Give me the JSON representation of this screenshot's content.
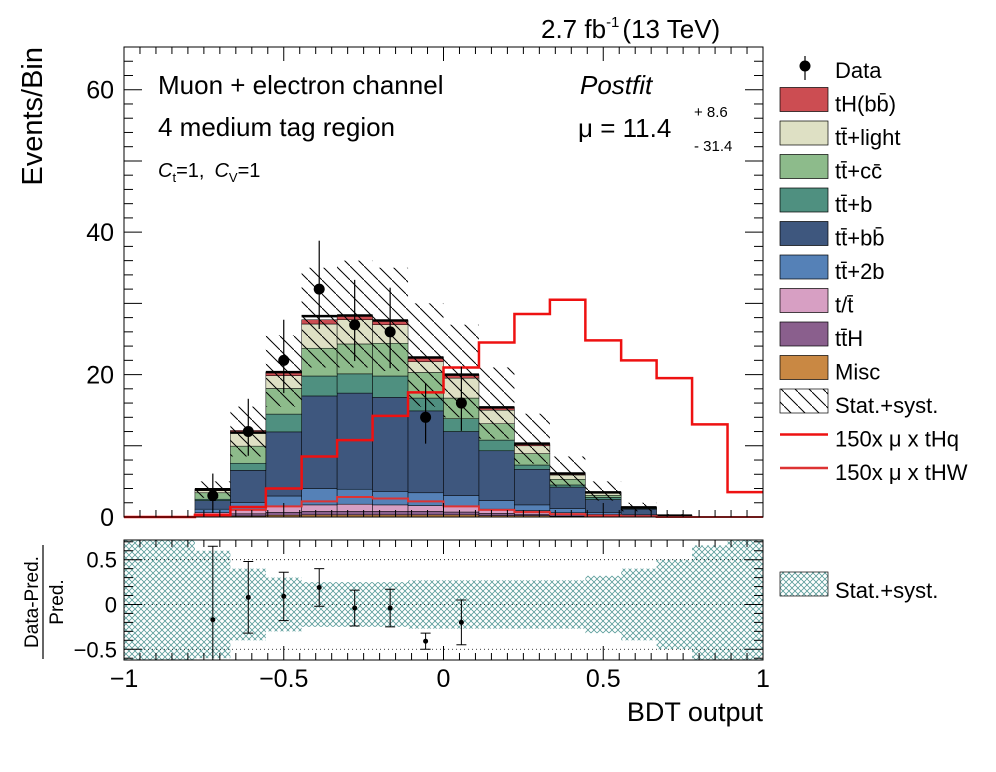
{
  "header": {
    "lumi": "2.7 fb",
    "lumi_exp": "-1",
    "energy": "(13 TeV)"
  },
  "annotations": {
    "channel": "Muon + electron channel",
    "region": "4 medium tag region",
    "couplings": {
      "ct_sym": "C",
      "ct_sub": "t",
      "ct_val": "=1,",
      "cv_sym": "C",
      "cv_sub": "V",
      "cv_val": "=1"
    },
    "postfit": "Postfit",
    "mu_text": "μ = 11.4",
    "mu_up": "+ 8.6",
    "mu_down": "-  31.4"
  },
  "colors": {
    "tH_bb": "#cc4d52",
    "tt_light": "#dee0c4",
    "tt_cc": "#8dbb8b",
    "tt_b": "#4f9080",
    "tt_bb": "#3e577e",
    "tt_2b": "#5581b7",
    "t_tbar": "#d79fc3",
    "ttH": "#8a5f8d",
    "misc": "#c98843",
    "tHq": "#ee1111",
    "tHW": "#dd3333",
    "band": "#5a9c9a"
  },
  "legend": {
    "main": [
      {
        "label": "Data",
        "kind": "data"
      },
      {
        "label": "tH(bb̄)",
        "kind": "box",
        "color": "tH_bb"
      },
      {
        "label": "tt̄+light",
        "kind": "box",
        "color": "tt_light"
      },
      {
        "label": "tt̄+cc̄",
        "kind": "box",
        "color": "tt_cc"
      },
      {
        "label": "tt̄+b",
        "kind": "box",
        "color": "tt_b"
      },
      {
        "label": "tt̄+bb̄",
        "kind": "box",
        "color": "tt_bb"
      },
      {
        "label": "tt̄+2b",
        "kind": "box",
        "color": "tt_2b"
      },
      {
        "label": "t/t̄",
        "kind": "box",
        "color": "t_tbar"
      },
      {
        "label": "tt̄H",
        "kind": "box",
        "color": "ttH"
      },
      {
        "label": "Misc",
        "kind": "box",
        "color": "misc"
      },
      {
        "label": "Stat.+syst.",
        "kind": "hatch"
      },
      {
        "label": "150x μ x tHq",
        "kind": "line",
        "color": "tHq"
      },
      {
        "label": "150x μ x tHW",
        "kind": "line",
        "color": "tHW"
      }
    ],
    "ratio": [
      {
        "label": "Stat.+syst.",
        "kind": "crosshatch"
      }
    ]
  },
  "chart_data": [
    {
      "type": "bar",
      "subtype": "stacked-histogram",
      "ylabel": "Events/Bin",
      "xlim": [
        -1,
        1
      ],
      "ylim": [
        0,
        66
      ],
      "yticks": [
        0,
        20,
        40,
        60
      ],
      "bin_edges": [
        -1.0,
        -0.889,
        -0.778,
        -0.667,
        -0.556,
        -0.444,
        -0.333,
        -0.222,
        -0.111,
        0.0,
        0.111,
        0.222,
        0.333,
        0.444,
        0.556,
        0.667,
        0.778,
        0.889,
        1.0
      ],
      "stack_order": [
        "misc",
        "ttH",
        "t_tbar",
        "tt_2b",
        "tt_bb",
        "tt_b",
        "tt_cc",
        "tt_light",
        "tH_bb"
      ],
      "stack": {
        "misc": [
          0,
          0,
          0.1,
          0.15,
          0.25,
          0.3,
          0.3,
          0.3,
          0.3,
          0.3,
          0.2,
          0.2,
          0.1,
          0.05,
          0,
          0,
          0,
          0
        ],
        "ttH": [
          0,
          0,
          0.2,
          0.3,
          0.4,
          0.5,
          0.5,
          0.5,
          0.5,
          0.4,
          0.3,
          0.2,
          0.2,
          0.1,
          0,
          0,
          0,
          0
        ],
        "t_tbar": [
          0,
          0,
          0.3,
          0.5,
          0.8,
          0.9,
          1.0,
          0.9,
          0.8,
          0.8,
          0.6,
          0.5,
          0.3,
          0.2,
          0.1,
          0,
          0,
          0
        ],
        "tt_2b": [
          0,
          0,
          0.5,
          1.1,
          1.5,
          2.3,
          2.1,
          1.9,
          1.8,
          1.5,
          1.2,
          0.8,
          0.6,
          0.3,
          0.2,
          0,
          0,
          0
        ],
        "tt_bb": [
          0,
          0,
          1.2,
          4.5,
          9.0,
          13.0,
          13.5,
          13.2,
          11.5,
          9.0,
          7.0,
          5.0,
          3.0,
          1.8,
          0.8,
          0.2,
          0,
          0
        ],
        "tt_b": [
          0,
          0,
          0.2,
          1.0,
          2.5,
          2.8,
          2.7,
          3.0,
          1.8,
          1.8,
          1.5,
          0.6,
          0.3,
          0.3,
          0.1,
          0,
          0,
          0
        ],
        "tt_cc": [
          0,
          0,
          0.9,
          2.4,
          3.6,
          3.9,
          4.2,
          4.6,
          3.6,
          2.9,
          2.3,
          1.6,
          0.8,
          0.3,
          0.1,
          0,
          0,
          0
        ],
        "tt_light": [
          0,
          0,
          0.3,
          1.9,
          1.8,
          3.4,
          3.4,
          2.6,
          1.5,
          2.8,
          1.9,
          1.1,
          0.6,
          0.3,
          0,
          0,
          0,
          0
        ],
        "tH_bb": [
          0,
          0,
          0.2,
          0.3,
          0.5,
          0.6,
          0.6,
          0.6,
          0.6,
          0.5,
          0.4,
          0.3,
          0.2,
          0.1,
          0.05,
          0,
          0,
          0
        ]
      },
      "total": [
        0,
        0,
        3.9,
        11.85,
        20.35,
        28.2,
        28.3,
        27.6,
        22.4,
        20.0,
        15.4,
        10.3,
        6.1,
        3.45,
        1.35,
        0.2,
        0,
        0
      ],
      "uncertainty_band": {
        "bins": [
          2,
          3,
          4,
          5,
          6,
          7,
          8,
          9,
          10,
          11,
          12,
          13,
          14,
          15
        ],
        "low": [
          2.7,
          8.5,
          15.5,
          21.0,
          21.0,
          20.5,
          15.5,
          14.0,
          11.0,
          7.5,
          4.3,
          2.3,
          0.8,
          0.1
        ],
        "high": [
          5.0,
          15.5,
          25.5,
          35.0,
          36.0,
          35.0,
          30.0,
          27.0,
          21.0,
          14.5,
          8.5,
          5.0,
          2.0,
          0.4
        ]
      },
      "data": [
        {
          "x": -0.722,
          "y": 3,
          "err_up": 3.1,
          "err_down": 2.4
        },
        {
          "x": -0.611,
          "y": 12,
          "err_up": 4.6,
          "err_down": 3.4
        },
        {
          "x": -0.5,
          "y": 22,
          "err_up": 5.7,
          "err_down": 4.6
        },
        {
          "x": -0.389,
          "y": 32,
          "err_up": 6.8,
          "err_down": 5.6
        },
        {
          "x": -0.278,
          "y": 27,
          "err_up": 6.3,
          "err_down": 5.1
        },
        {
          "x": -0.167,
          "y": 26,
          "err_up": 6.2,
          "err_down": 5.1
        },
        {
          "x": -0.056,
          "y": 14,
          "err_up": 4.8,
          "err_down": 3.7
        },
        {
          "x": 0.056,
          "y": 16,
          "err_up": 5.1,
          "err_down": 3.9
        }
      ],
      "signal_tHq": [
        0,
        0,
        0.3,
        1.4,
        4.0,
        8.5,
        10.8,
        14.2,
        17.5,
        21.0,
        24.5,
        28.5,
        30.5,
        24.8,
        22.0,
        19.5,
        13.0,
        3.5
      ],
      "signal_tHW": [
        0,
        0,
        0.2,
        1.0,
        1.5,
        2.2,
        2.8,
        2.6,
        2.2,
        1.5,
        1.0,
        0.7,
        0.4,
        0.2,
        0.1,
        0,
        0,
        0
      ]
    },
    {
      "type": "scatter",
      "subtype": "ratio-panel",
      "xlabel": "BDT output",
      "ylabel": "Data-Pred.",
      "ylabel_den": "Pred.",
      "xlim": [
        -1,
        1
      ],
      "ylim": [
        -0.62,
        0.72
      ],
      "yticks": [
        -0.5,
        0,
        0.5
      ],
      "xticks": [
        -1,
        -0.5,
        0,
        0.5,
        1
      ],
      "xtick_labels": [
        "−1",
        "−0.5",
        "0",
        "0.5",
        "1"
      ],
      "ytick_labels": [
        "−0.5",
        "0",
        "0.5"
      ],
      "points": [
        {
          "x": -0.722,
          "y": -0.17,
          "err": 0.82
        },
        {
          "x": -0.611,
          "y": 0.08,
          "err": 0.4
        },
        {
          "x": -0.5,
          "y": 0.09,
          "err": 0.27
        },
        {
          "x": -0.389,
          "y": 0.19,
          "err": 0.21
        },
        {
          "x": -0.278,
          "y": -0.04,
          "err": 0.2
        },
        {
          "x": -0.167,
          "y": -0.04,
          "err": 0.21
        },
        {
          "x": -0.056,
          "y": -0.41,
          "err": 0.09
        },
        {
          "x": 0.056,
          "y": -0.2,
          "err": 0.25
        }
      ],
      "band_halfwidth": [
        0.72,
        0.72,
        0.6,
        0.4,
        0.3,
        0.25,
        0.25,
        0.25,
        0.27,
        0.27,
        0.27,
        0.27,
        0.27,
        0.32,
        0.4,
        0.5,
        0.66,
        0.72
      ]
    }
  ]
}
